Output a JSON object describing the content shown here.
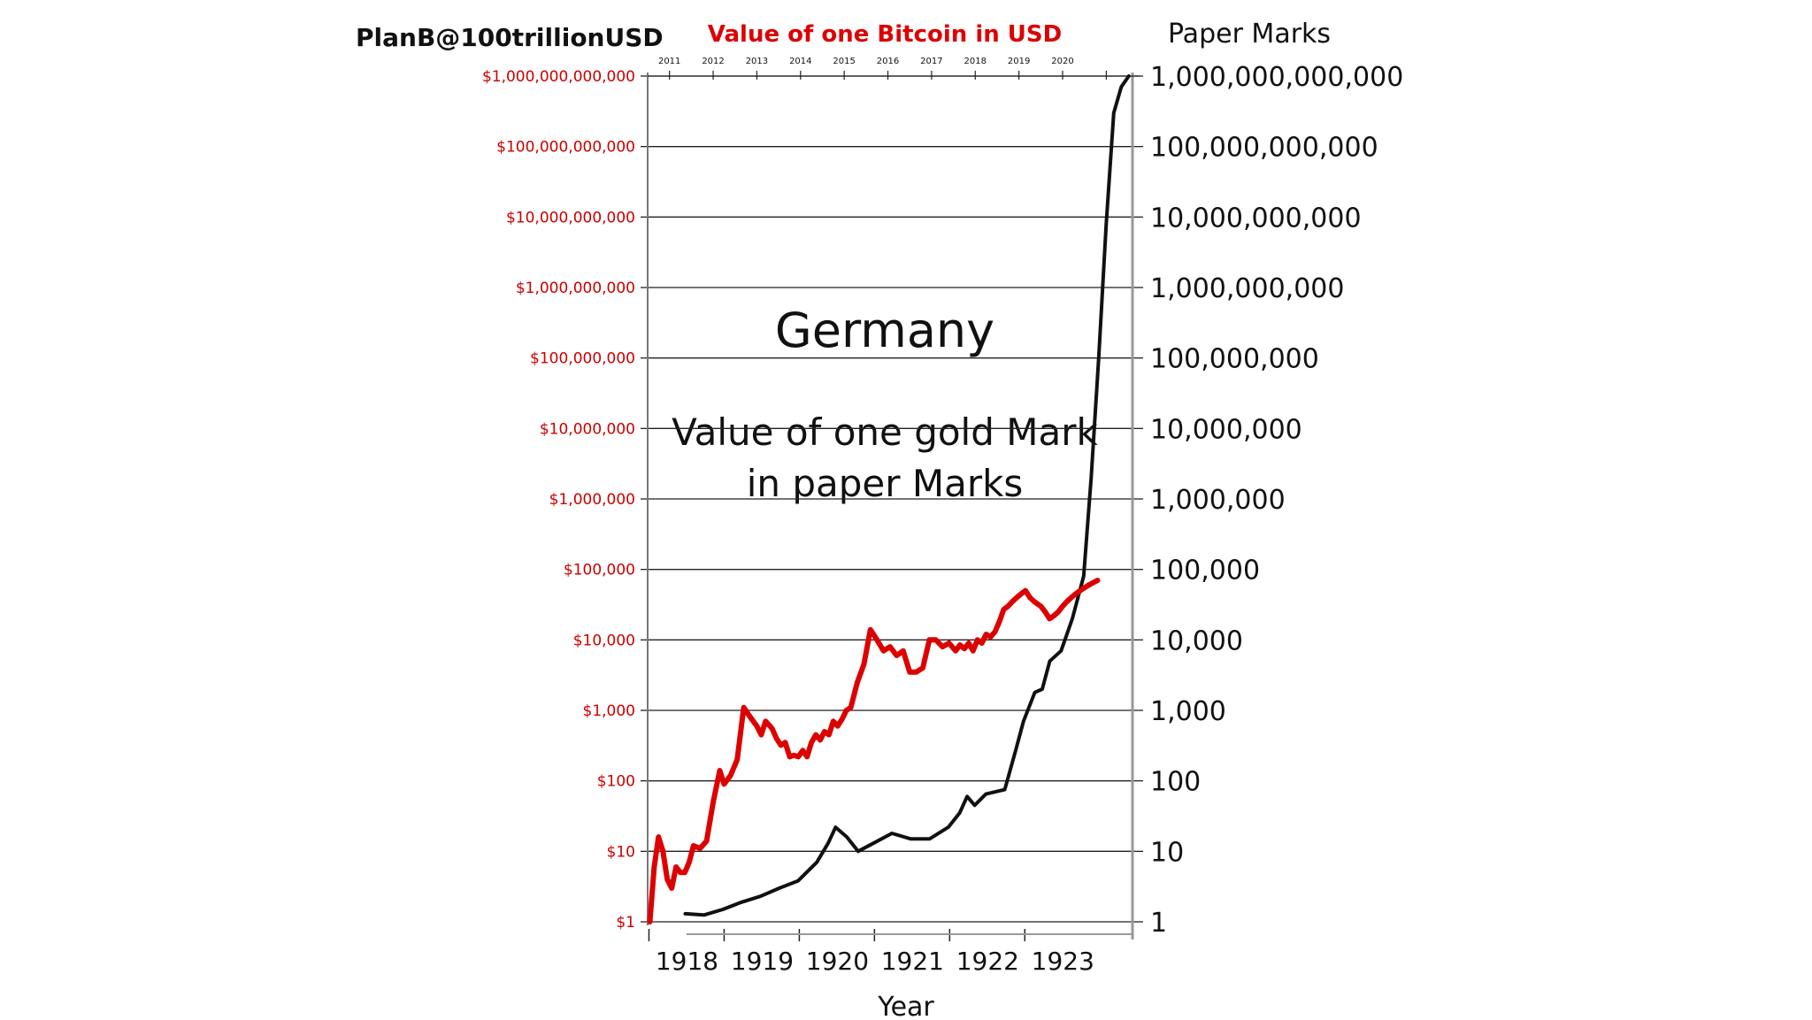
{
  "author": "PlanB@100trillionUSD",
  "colors": {
    "bitcoin": "#dd0000",
    "mark": "#111111",
    "grid": "#222222",
    "left_tick_text": "#cc0000",
    "axis_text": "#111111"
  },
  "chart_data": {
    "type": "line",
    "yscale": "log",
    "grid": true,
    "legend": "none",
    "annotations": [
      "Germany",
      "Value of one gold Mark",
      "in paper Marks"
    ],
    "bottom_axis": {
      "label": "Year",
      "ticks": [
        "1918",
        "1919",
        "1920",
        "1921",
        "1922",
        "1923"
      ],
      "xlim": [
        1917.5,
        1923.95
      ]
    },
    "top_axis": {
      "ticks": [
        "2011",
        "2012",
        "2013",
        "2014",
        "2015",
        "2016",
        "2017",
        "2018",
        "2019",
        "2020"
      ],
      "xlim": [
        2010.5,
        2021.6
      ]
    },
    "left_axis": {
      "title": "Value of one Bitcoin in USD",
      "ticks": [
        "$1",
        "$10",
        "$100",
        "$1,000",
        "$10,000",
        "$100,000",
        "$1,000,000",
        "$10,000,000",
        "$100,000,000",
        "$1,000,000,000",
        "$10,000,000,000",
        "$100,000,000,000",
        "$1,000,000,000,000"
      ],
      "ylim": [
        1,
        1000000000000
      ]
    },
    "right_axis": {
      "title": "Paper Marks",
      "ticks": [
        "1",
        "10",
        "100",
        "1,000",
        "10,000",
        "100,000",
        "1,000,000",
        "10,000,000",
        "100,000,000",
        "1,000,000,000",
        "10,000,000,000",
        "100,000,000,000",
        "1,000,000,000,000"
      ],
      "ylim": [
        1,
        1000000000000
      ]
    },
    "series": [
      {
        "axis": "bottom-right",
        "x": [
          1918.0,
          1918.25,
          1918.5,
          1918.75,
          1919.0,
          1919.25,
          1919.5,
          1919.75,
          1919.9,
          1920.0,
          1920.15,
          1920.3,
          1920.5,
          1920.75,
          1921.0,
          1921.25,
          1921.5,
          1921.65,
          1921.75,
          1921.85,
          1922.0,
          1922.25,
          1922.4,
          1922.5,
          1922.65,
          1922.75,
          1922.85,
          1923.0,
          1923.15,
          1923.3,
          1923.4,
          1923.5,
          1923.6,
          1923.7,
          1923.8,
          1923.9
        ],
        "y": [
          1.3,
          1.25,
          1.5,
          1.9,
          2.3,
          3.0,
          3.8,
          7,
          13,
          22,
          16,
          10,
          13,
          18,
          15,
          15,
          22,
          35,
          60,
          45,
          65,
          75,
          280,
          700,
          1800,
          2000,
          5000,
          7000,
          20000,
          80000,
          2000000,
          100000000,
          8000000000,
          300000000000,
          700000000000,
          1000000000000
        ]
      },
      {
        "axis": "top-left",
        "x": [
          2010.55,
          2010.65,
          2010.75,
          2010.85,
          2010.95,
          2011.05,
          2011.15,
          2011.25,
          2011.35,
          2011.45,
          2011.55,
          2011.7,
          2011.85,
          2012.0,
          2012.15,
          2012.25,
          2012.4,
          2012.55,
          2012.7,
          2012.85,
          2013.0,
          2013.1,
          2013.2,
          2013.3,
          2013.35,
          2013.45,
          2013.55,
          2013.65,
          2013.75,
          2013.85,
          2013.95,
          2014.05,
          2014.15,
          2014.25,
          2014.35,
          2014.45,
          2014.55,
          2014.65,
          2014.75,
          2014.85,
          2014.95,
          2015.05,
          2015.15,
          2015.3,
          2015.45,
          2015.6,
          2015.75,
          2015.9,
          2016.05,
          2016.2,
          2016.35,
          2016.5,
          2016.65,
          2016.8,
          2016.95,
          2017.1,
          2017.25,
          2017.4,
          2017.55,
          2017.65,
          2017.75,
          2017.85,
          2017.95,
          2018.05,
          2018.15,
          2018.25,
          2018.35,
          2018.45,
          2018.55,
          2018.65,
          2018.75,
          2018.85,
          2018.95,
          2019.05,
          2019.15,
          2019.25,
          2019.35,
          2019.5,
          2019.6,
          2019.7,
          2019.8,
          2019.9,
          2020.0,
          2020.1,
          2020.2,
          2020.3,
          2020.4,
          2020.5,
          2020.6,
          2020.7,
          2020.8
        ],
        "y": [
          1,
          6,
          16,
          10,
          4,
          3,
          6,
          5,
          5,
          7,
          12,
          11,
          14,
          50,
          140,
          90,
          120,
          200,
          1100,
          800,
          600,
          450,
          700,
          600,
          550,
          400,
          320,
          350,
          220,
          230,
          220,
          270,
          220,
          350,
          450,
          380,
          500,
          450,
          700,
          600,
          750,
          1000,
          1100,
          2500,
          4500,
          14000,
          10000,
          7000,
          8000,
          6000,
          7000,
          3500,
          3500,
          4000,
          10000,
          10000,
          8000,
          9000,
          7000,
          8500,
          7500,
          9000,
          7000,
          10000,
          9000,
          12000,
          11000,
          13000,
          18000,
          27000,
          30000,
          35000,
          40000,
          45000,
          50000,
          40000,
          35000,
          30000,
          25000,
          20000,
          22000,
          25000,
          30000,
          35000,
          40000,
          45000,
          50000,
          55000,
          60000,
          65000,
          70000
        ]
      }
    ]
  }
}
